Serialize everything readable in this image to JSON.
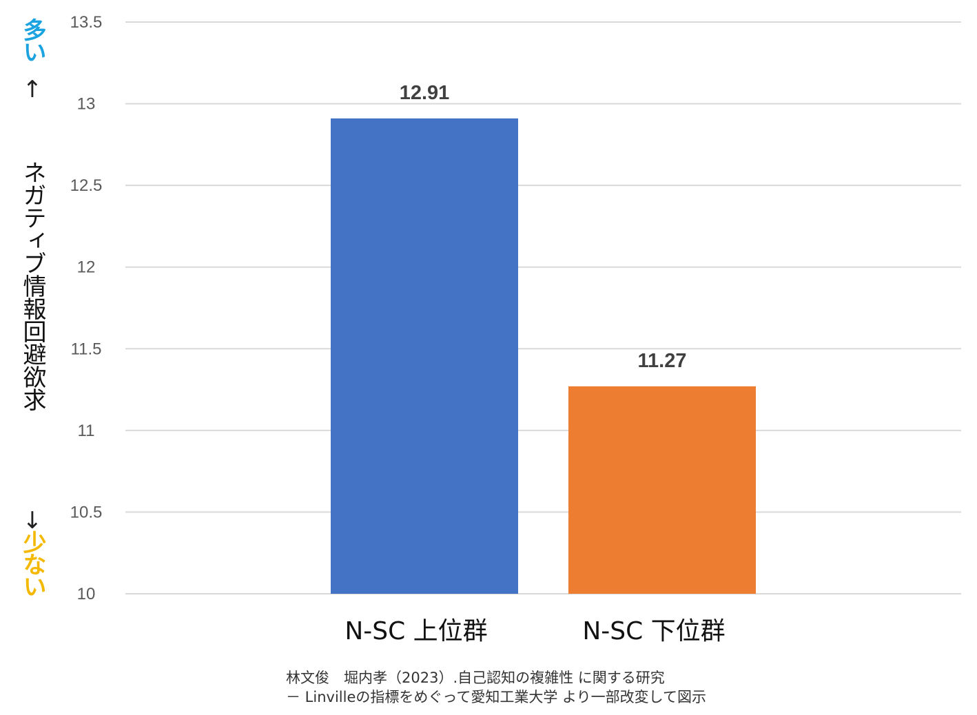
{
  "chart_data": {
    "type": "bar",
    "categories": [
      "N-SC 上位群",
      "N-SC 下位群"
    ],
    "values": [
      12.91,
      11.27
    ],
    "data_labels": [
      "12.91",
      "11.27"
    ],
    "colors": [
      "#4472c4",
      "#ed7d31"
    ],
    "ylim": [
      10,
      13.5
    ],
    "yticks": [
      "13.5",
      "13",
      "12.5",
      "12",
      "11.5",
      "11",
      "10.5",
      "10"
    ],
    "ytick_values": [
      13.5,
      13,
      12.5,
      12,
      11.5,
      11,
      10.5,
      10
    ],
    "grid": true,
    "legend": "none",
    "ylabel": {
      "top": "多い",
      "arrow_up": "↑",
      "main": "ネガティブ情報回避欲求",
      "arrow_down": "↓",
      "bottom": "少ない"
    },
    "ylabel_colors": {
      "top": "#1aa3e0",
      "bottom": "#f5b800"
    }
  },
  "source": {
    "line1": "林文俊　堀内孝（2023）.自己認知の複雑性 に関する研究",
    "line2": "－ Linvilleの指標をめぐって愛知工業大学 より一部改変して図示"
  }
}
